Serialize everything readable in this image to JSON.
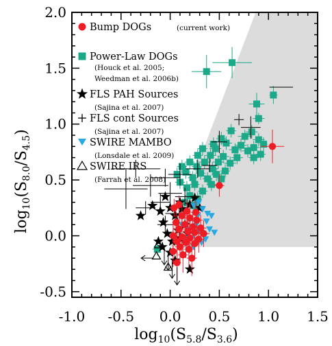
{
  "chart_data": {
    "type": "scatter",
    "xlabel": {
      "prefix": "log",
      "base": "10",
      "open": "(S",
      "sub1": "5.8",
      "mid": "/S",
      "sub2": "3.6",
      "close": ")"
    },
    "ylabel": {
      "prefix": "log",
      "base": "10",
      "open": "(S",
      "sub1": "8.0",
      "mid": "/S",
      "sub2": "4.5",
      "close": ")"
    },
    "xlim": [
      -1.0,
      1.5
    ],
    "ylim": [
      -0.55,
      2.0
    ],
    "xticks": [
      -1.0,
      -0.5,
      0.0,
      0.5,
      1.0,
      1.5
    ],
    "xtick_labels": [
      "-1.0",
      "-0.5",
      "0.0",
      "0.5",
      "1.0",
      "1.5"
    ],
    "yticks": [
      -0.5,
      0.0,
      0.5,
      1.0,
      1.5,
      2.0
    ],
    "ytick_labels": [
      "-0.5",
      "0.0",
      "0.5",
      "1.0",
      "1.5",
      "2.0"
    ],
    "grid": false,
    "legend_position": "top-left",
    "region": {
      "polygon": [
        [
          0.0,
          0.0
        ],
        [
          0.0,
          -0.1
        ],
        [
          1.5,
          -0.1
        ],
        [
          1.5,
          2.0
        ],
        [
          0.87,
          2.0
        ]
      ],
      "color": "#dcdcdc"
    },
    "legend": [
      {
        "name": "Bump DOGs",
        "ref": "(current work)",
        "marker": "circle",
        "color": "#ee1c25"
      },
      {
        "name": "Power-Law DOGs",
        "ref": "(Houck et al. 2005;",
        "ref2": "Weedman et al. 2006b)",
        "marker": "square",
        "color": "#1ba98a"
      },
      {
        "name": "FLS PAH Sources",
        "ref": "(Sajina et al. 2007)",
        "marker": "star",
        "color": "#000000"
      },
      {
        "name": "FLS cont Sources",
        "ref": "(Sajina et al. 2007)",
        "marker": "plus",
        "color": "#000000"
      },
      {
        "name": "SWIRE MAMBO",
        "ref": "(Lonsdale et al. 2009)",
        "marker": "triangle-down",
        "color": "#29a9e1"
      },
      {
        "name": "SWIRE IRS",
        "ref": "(Farrah et al. 2008)",
        "marker": "triangle-open",
        "color": "#000000"
      }
    ],
    "series": [
      {
        "name": "Power-Law DOGs",
        "marker": "square",
        "color": "#1ba98a",
        "points": [
          [
            0.37,
            1.47,
            0.15,
            0.15
          ],
          [
            0.63,
            1.55,
            0.2,
            0.14
          ],
          [
            1.05,
            1.26,
            0.04,
            0.08
          ],
          [
            0.88,
            1.18,
            0.08,
            0.1
          ],
          [
            0.9,
            1.05,
            0.06,
            0.05
          ],
          [
            0.62,
            0.94,
            0.05,
            0.06
          ],
          [
            0.83,
            0.93,
            0.06,
            0.06
          ],
          [
            0.76,
            0.89,
            0.07,
            0.06
          ],
          [
            0.52,
            0.87,
            0.05,
            0.06
          ],
          [
            0.9,
            0.86,
            0.06,
            0.06
          ],
          [
            0.44,
            0.82,
            0.05,
            0.06
          ],
          [
            0.57,
            0.83,
            0.06,
            0.06
          ],
          [
            0.72,
            0.81,
            0.06,
            0.06
          ],
          [
            0.85,
            0.79,
            0.06,
            0.06
          ],
          [
            0.95,
            0.82,
            0.04,
            0.06
          ],
          [
            0.33,
            0.78,
            0.05,
            0.06
          ],
          [
            0.46,
            0.78,
            0.06,
            0.06
          ],
          [
            0.66,
            0.77,
            0.06,
            0.06
          ],
          [
            0.79,
            0.76,
            0.06,
            0.06
          ],
          [
            0.92,
            0.73,
            0.05,
            0.06
          ],
          [
            0.28,
            0.72,
            0.05,
            0.06
          ],
          [
            0.41,
            0.72,
            0.06,
            0.06
          ],
          [
            0.54,
            0.71,
            0.06,
            0.06
          ],
          [
            0.68,
            0.7,
            0.06,
            0.06
          ],
          [
            0.85,
            0.7,
            0.05,
            0.06
          ],
          [
            0.2,
            0.66,
            0.05,
            0.06
          ],
          [
            0.35,
            0.66,
            0.06,
            0.06
          ],
          [
            0.49,
            0.66,
            0.06,
            0.06
          ],
          [
            0.61,
            0.65,
            0.06,
            0.06
          ],
          [
            0.12,
            0.62,
            0.05,
            0.06
          ],
          [
            0.27,
            0.62,
            0.05,
            0.06
          ],
          [
            0.43,
            0.6,
            0.06,
            0.06
          ],
          [
            0.56,
            0.58,
            0.05,
            0.06
          ],
          [
            0.16,
            0.57,
            0.05,
            0.06
          ],
          [
            0.31,
            0.56,
            0.05,
            0.06
          ],
          [
            0.47,
            0.55,
            0.05,
            0.06
          ],
          [
            0.07,
            0.55,
            0.04,
            0.06
          ],
          [
            0.23,
            0.52,
            0.05,
            0.06
          ],
          [
            0.38,
            0.51,
            0.05,
            0.06
          ],
          [
            0.52,
            0.51,
            0.04,
            0.06
          ],
          [
            0.1,
            0.48,
            0.05,
            0.06
          ],
          [
            0.25,
            0.46,
            0.05,
            0.06
          ],
          [
            0.42,
            0.46,
            0.05,
            0.06
          ],
          [
            0.17,
            0.43,
            0.04,
            0.06
          ],
          [
            0.33,
            0.4,
            0.05,
            0.06
          ],
          [
            0.2,
            0.36,
            0.05,
            0.06
          ],
          [
            0.28,
            0.33,
            0.04,
            0.06
          ],
          [
            0.15,
            0.3,
            0.04,
            0.06
          ],
          [
            0.24,
            0.27,
            0.04,
            0.06
          ],
          [
            -0.13,
            -0.12,
            0.05,
            0.06
          ]
        ]
      },
      {
        "name": "FLS cont Sources",
        "marker": "plus",
        "color": "#000000",
        "points": [
          [
            1.13,
            1.33,
            0.12,
            0.0
          ],
          [
            0.82,
            0.97,
            0.1,
            0.1
          ],
          [
            0.7,
            1.04,
            0.05,
            0.05
          ],
          [
            0.5,
            0.84,
            0.08,
            0.1
          ],
          [
            -0.35,
            0.6,
            0.25,
            0.08
          ],
          [
            -0.2,
            0.45,
            0.18,
            0.1
          ],
          [
            -0.45,
            0.42,
            0.22,
            0.18
          ],
          [
            -0.05,
            0.52,
            0.15,
            0.08
          ],
          [
            0.1,
            0.55,
            0.12,
            0.1
          ],
          [
            0.28,
            0.6,
            0.12,
            0.08
          ],
          [
            0.4,
            0.63,
            0.08,
            0.06
          ],
          [
            -0.1,
            0.3,
            0.1,
            0.08
          ],
          [
            0.0,
            0.38,
            0.12,
            0.1
          ],
          [
            0.15,
            0.35,
            0.1,
            0.08
          ],
          [
            -0.25,
            0.25,
            0.1,
            0.06
          ],
          [
            0.05,
            0.2,
            0.1,
            0.08
          ],
          [
            -0.05,
            0.1,
            0.08,
            0.08
          ]
        ]
      },
      {
        "name": "FLS PAH Sources",
        "marker": "star",
        "color": "#000000",
        "points": [
          [
            -0.3,
            0.18
          ],
          [
            -0.18,
            0.27
          ],
          [
            -0.1,
            0.22
          ],
          [
            -0.07,
            0.12
          ],
          [
            0.0,
            0.25
          ],
          [
            0.05,
            0.18
          ],
          [
            0.12,
            0.24
          ],
          [
            0.2,
            0.28
          ],
          [
            0.25,
            0.34
          ],
          [
            -0.03,
            0.02
          ],
          [
            0.02,
            -0.05
          ],
          [
            0.08,
            0.05
          ],
          [
            0.15,
            0.1
          ],
          [
            0.1,
            -0.02
          ],
          [
            0.18,
            0.02
          ],
          [
            -0.08,
            -0.1
          ],
          [
            0.0,
            -0.15
          ],
          [
            0.05,
            -0.22
          ],
          [
            -0.12,
            -0.05
          ],
          [
            0.2,
            -0.3
          ],
          [
            0.1,
            0.3
          ],
          [
            -0.05,
            0.35
          ],
          [
            0.3,
            0.25
          ]
        ]
      },
      {
        "name": "SWIRE MAMBO",
        "marker": "triangle-down",
        "color": "#29a9e1",
        "points": [
          [
            0.24,
            0.27
          ],
          [
            0.33,
            0.24
          ],
          [
            0.28,
            0.18
          ],
          [
            0.37,
            0.13
          ],
          [
            0.4,
            0.06
          ],
          [
            0.3,
            0.04
          ],
          [
            0.35,
            0.0
          ],
          [
            0.26,
            0.09
          ],
          [
            0.18,
            0.06
          ],
          [
            0.22,
            -0.02
          ],
          [
            0.42,
            0.18
          ],
          [
            0.45,
            0.03
          ],
          [
            0.32,
            -0.06
          ],
          [
            0.24,
            -0.1
          ],
          [
            0.15,
            -0.02
          ],
          [
            0.38,
            0.2
          ],
          [
            0.29,
            0.3
          ],
          [
            0.2,
            0.15
          ],
          [
            0.36,
            -0.03
          ],
          [
            0.12,
            0.1
          ]
        ]
      },
      {
        "name": "Bump DOGs",
        "marker": "circle",
        "color": "#ee1c25",
        "points": [
          [
            1.04,
            0.8,
            0.12,
            0.15
          ],
          [
            0.5,
            0.45,
            0.05,
            0.1
          ],
          [
            0.04,
            0.25,
            0.05,
            0.08
          ],
          [
            0.12,
            0.18,
            0.05,
            0.1
          ],
          [
            0.2,
            0.16,
            0.06,
            0.12
          ],
          [
            0.27,
            0.14,
            0.06,
            0.1
          ],
          [
            0.06,
            0.12,
            0.04,
            0.1
          ],
          [
            0.15,
            0.1,
            0.05,
            0.12
          ],
          [
            0.23,
            0.08,
            0.05,
            0.12
          ],
          [
            0.31,
            0.07,
            0.06,
            0.12
          ],
          [
            0.09,
            0.06,
            0.05,
            0.12
          ],
          [
            0.18,
            0.04,
            0.05,
            0.12
          ],
          [
            0.25,
            0.03,
            0.06,
            0.14
          ],
          [
            0.34,
            0.02,
            0.06,
            0.12
          ],
          [
            0.03,
            0.0,
            0.04,
            0.12
          ],
          [
            0.12,
            -0.01,
            0.05,
            0.14
          ],
          [
            0.2,
            -0.02,
            0.06,
            0.14
          ],
          [
            0.29,
            -0.03,
            0.05,
            0.12
          ],
          [
            0.07,
            -0.05,
            0.05,
            0.14
          ],
          [
            0.16,
            -0.06,
            0.05,
            0.14
          ],
          [
            0.25,
            -0.07,
            0.05,
            0.14
          ],
          [
            0.1,
            -0.1,
            0.05,
            0.14
          ],
          [
            0.19,
            -0.12,
            0.05,
            0.16
          ],
          [
            0.03,
            -0.14,
            0.04,
            0.14
          ],
          [
            0.13,
            -0.17,
            0.05,
            0.16
          ],
          [
            0.22,
            -0.2,
            0.05,
            0.16
          ],
          [
            0.07,
            -0.24,
            0.04,
            0.16
          ],
          [
            0.17,
            0.22,
            0.04,
            0.1
          ],
          [
            0.26,
            0.21,
            0.05,
            0.1
          ],
          [
            0.09,
            0.28,
            0.04,
            0.08
          ]
        ]
      },
      {
        "name": "SWIRE IRS",
        "marker": "triangle-open",
        "color": "#000000",
        "points": [
          [
            -0.14,
            -0.18
          ],
          [
            -0.02,
            -0.28
          ],
          [
            -0.12,
            -0.08
          ]
        ],
        "upper_limits": [
          [
            -0.02,
            -0.15
          ],
          [
            0.02,
            -0.22
          ],
          [
            0.07,
            -0.28
          ],
          [
            -0.06,
            -0.1
          ]
        ],
        "left_limits": [
          [
            -0.17,
            -0.2
          ]
        ]
      }
    ]
  }
}
